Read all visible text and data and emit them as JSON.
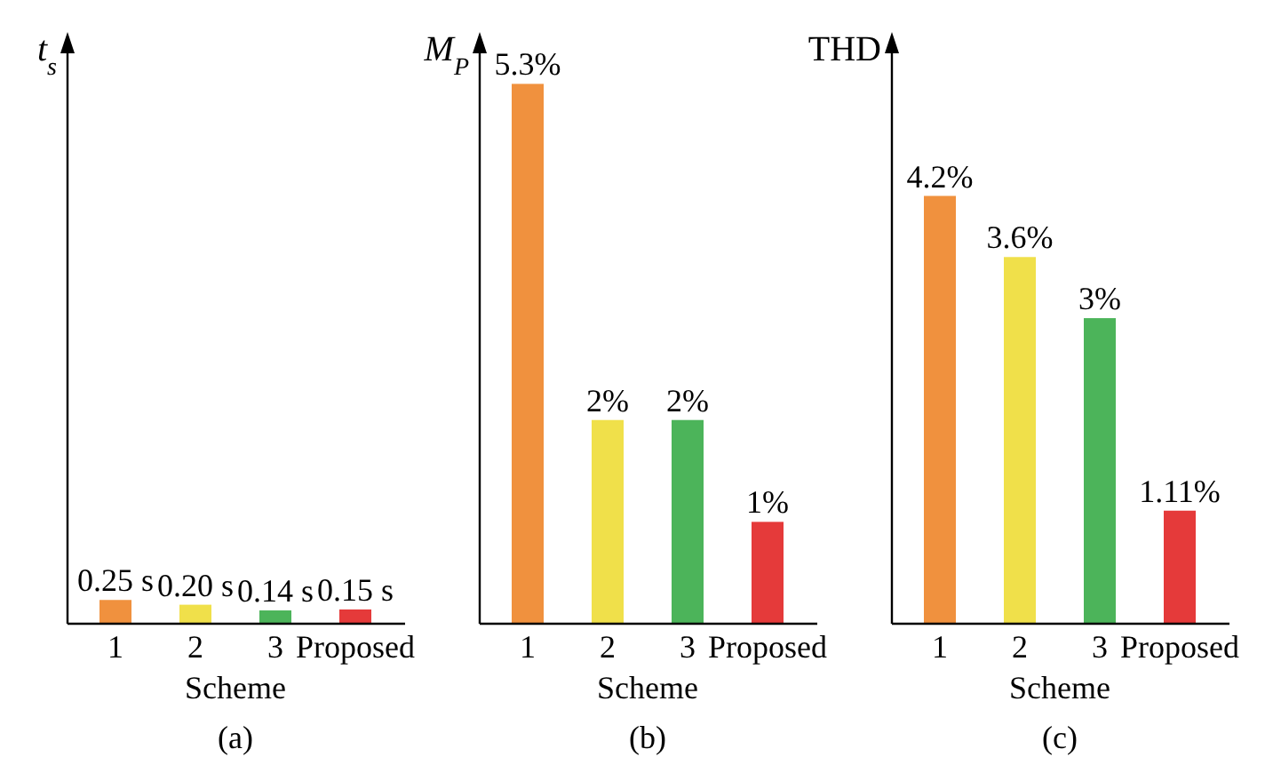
{
  "chart_data": [
    {
      "type": "bar",
      "ylabel": "t$_{s}$",
      "xlabel": "Scheme",
      "categories": [
        "1",
        "2",
        "3",
        "Proposed"
      ],
      "values": [
        0.25,
        0.2,
        0.14,
        0.15
      ],
      "colors": [
        "#f0913e",
        "#f0e04a",
        "#4cb45a",
        "#e53a3a"
      ],
      "value_labels": [
        "0.25 s",
        "0.20 s",
        "0.14 s",
        "0.15 s"
      ],
      "ylim": [
        0,
        6
      ],
      "annotations": [
        "(a)"
      ]
    },
    {
      "type": "bar",
      "ylabel": "M$_{P}$",
      "xlabel": "Scheme",
      "categories": [
        "1",
        "2",
        "3",
        "Proposed"
      ],
      "values": [
        5.3,
        2,
        2,
        1
      ],
      "colors": [
        "#f0913e",
        "#f0e04a",
        "#4cb45a",
        "#e53a3a"
      ],
      "value_labels": [
        "5.3%",
        "2%",
        "2%",
        "1%"
      ],
      "ylim": [
        0,
        5.6
      ],
      "annotations": [
        "(b)"
      ]
    },
    {
      "type": "bar",
      "ylabel": "THD",
      "xlabel": "Scheme",
      "categories": [
        "1",
        "2",
        "3",
        "Proposed"
      ],
      "values": [
        4.2,
        3.6,
        3,
        1.11
      ],
      "colors": [
        "#f0913e",
        "#f0e04a",
        "#4cb45a",
        "#e53a3a"
      ],
      "value_labels": [
        "4.2%",
        "3.6%",
        "3%",
        "1.11%"
      ],
      "ylim": [
        0,
        5.6
      ],
      "annotations": [
        "(c)"
      ]
    }
  ]
}
